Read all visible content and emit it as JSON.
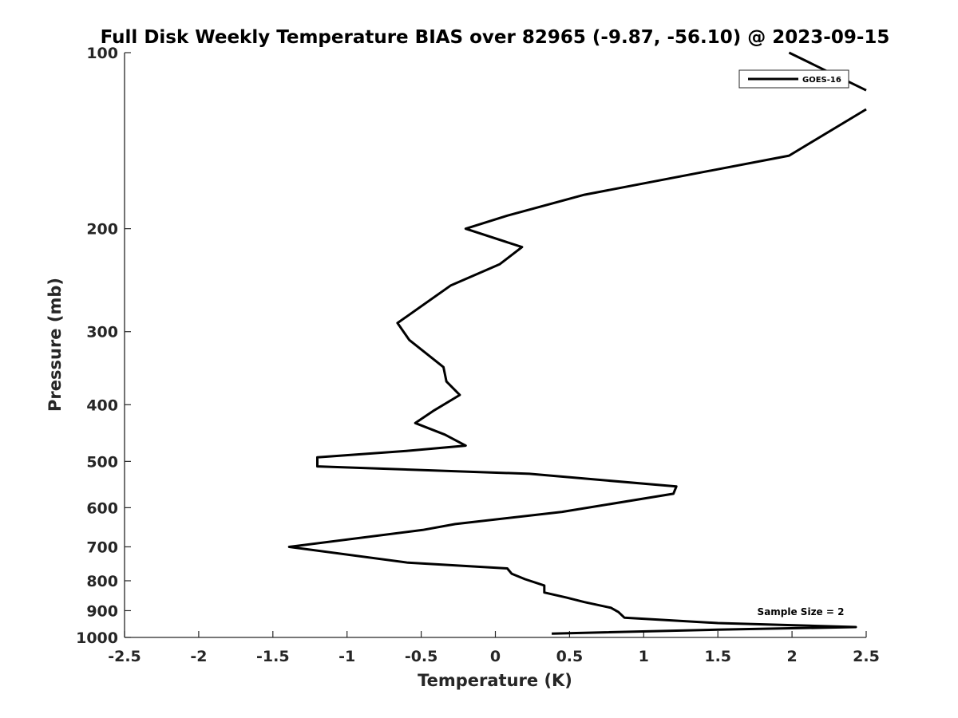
{
  "chart_data": {
    "type": "line",
    "title": "Full Disk Weekly Temperature BIAS over 82965 (-9.87, -56.10) @ 2023-09-15",
    "xlabel": "Temperature (K)",
    "ylabel": "Pressure (mb)",
    "xlim": [
      -2.5,
      2.5
    ],
    "ylim": [
      1000,
      100
    ],
    "y_scale": "log",
    "y_reversed": true,
    "x_ticks": [
      -2.5,
      -2,
      -1.5,
      -1,
      -0.5,
      0,
      0.5,
      1,
      1.5,
      2,
      2.5
    ],
    "x_tick_labels": [
      "-2.5",
      "-2",
      "-1.5",
      "-1",
      "-0.5",
      "0",
      "0.5",
      "1",
      "1.5",
      "2",
      "2.5"
    ],
    "y_ticks": [
      100,
      200,
      300,
      400,
      500,
      600,
      700,
      800,
      900,
      1000
    ],
    "y_tick_labels": [
      "100",
      "200",
      "300",
      "400",
      "500",
      "600",
      "700",
      "800",
      "900",
      "1000"
    ],
    "grid": false,
    "legend_position": "top-right",
    "series": [
      {
        "name": "GOES-16",
        "color": "#000000",
        "points": [
          [
            1.98,
            100
          ],
          [
            2.5,
            116
          ],
          [
            2.5,
            125
          ],
          [
            1.98,
            150
          ],
          [
            0.6,
            175
          ],
          [
            0.08,
            190
          ],
          [
            -0.2,
            200
          ],
          [
            0.18,
            215
          ],
          [
            0.03,
            230
          ],
          [
            -0.3,
            250
          ],
          [
            -0.66,
            290
          ],
          [
            -0.58,
            310
          ],
          [
            -0.35,
            345
          ],
          [
            -0.33,
            365
          ],
          [
            -0.24,
            385
          ],
          [
            -0.42,
            410
          ],
          [
            -0.54,
            430
          ],
          [
            -0.34,
            450
          ],
          [
            -0.2,
            470
          ],
          [
            -0.6,
            480
          ],
          [
            -1.2,
            492
          ],
          [
            -1.2,
            510
          ],
          [
            0.23,
            525
          ],
          [
            1.22,
            552
          ],
          [
            1.2,
            568
          ],
          [
            0.45,
            610
          ],
          [
            -0.27,
            640
          ],
          [
            -0.49,
            655
          ],
          [
            -1.39,
            700
          ],
          [
            -0.59,
            745
          ],
          [
            0.08,
            762
          ],
          [
            0.11,
            778
          ],
          [
            0.2,
            795
          ],
          [
            0.33,
            815
          ],
          [
            0.33,
            838
          ],
          [
            0.48,
            855
          ],
          [
            0.6,
            870
          ],
          [
            0.78,
            890
          ],
          [
            0.83,
            905
          ],
          [
            0.87,
            925
          ],
          [
            1.5,
            945
          ],
          [
            2.43,
            960
          ],
          [
            1.5,
            970
          ],
          [
            0.38,
            985
          ]
        ]
      }
    ],
    "annotations": [
      "Sample Size = 2"
    ]
  }
}
